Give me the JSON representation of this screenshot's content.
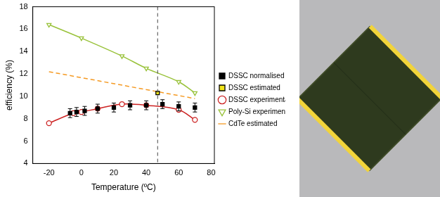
{
  "chart_data": {
    "type": "scatter",
    "x_label": "Temperature (ºC)",
    "y_label": "efficiency (%)",
    "xlim": [
      -30,
      82
    ],
    "xticks": [
      -20,
      0,
      20,
      40,
      60,
      80
    ],
    "ylim": [
      4,
      18
    ],
    "yticks": [
      4,
      6,
      8,
      10,
      12,
      14,
      16,
      18
    ],
    "grid": false,
    "legend": "right",
    "vertical_line_x": 47,
    "series": [
      {
        "name": "DSSC normalised",
        "color": "#000000",
        "marker": "square",
        "line_style": "none",
        "x": [
          -7,
          -3,
          2,
          10,
          20,
          30,
          40,
          50,
          60,
          70
        ],
        "values": [
          8.5,
          8.6,
          8.7,
          8.9,
          9.0,
          9.2,
          9.2,
          9.3,
          9.1,
          9.0
        ],
        "error": [
          0.4,
          0.4,
          0.4,
          0.4,
          0.4,
          0.4,
          0.4,
          0.4,
          0.4,
          0.4
        ]
      },
      {
        "name": "DSSC estimated",
        "color": "#f2e61a",
        "marker": "square",
        "line_style": "none",
        "x": [
          47
        ],
        "values": [
          10.3
        ]
      },
      {
        "name": "DSSC experimental",
        "color": "#cc2222",
        "marker": "circle-open",
        "line_style": "solid",
        "x": [
          -20,
          -5,
          0,
          10,
          25,
          40,
          60,
          70
        ],
        "values": [
          7.6,
          8.5,
          8.6,
          8.9,
          9.3,
          9.2,
          8.8,
          7.9
        ]
      },
      {
        "name": "Poly-Si experimental",
        "color": "#99c23a",
        "marker": "triangle-down-open",
        "line_style": "solid",
        "x": [
          -20,
          0,
          25,
          40,
          60,
          70
        ],
        "values": [
          16.4,
          15.2,
          13.6,
          12.5,
          11.3,
          10.3
        ]
      },
      {
        "name": "CdTe estimated",
        "color": "#f59a23",
        "marker": "none",
        "line_style": "dashed",
        "x": [
          -20,
          70
        ],
        "values": [
          12.2,
          9.8
        ]
      }
    ]
  }
}
